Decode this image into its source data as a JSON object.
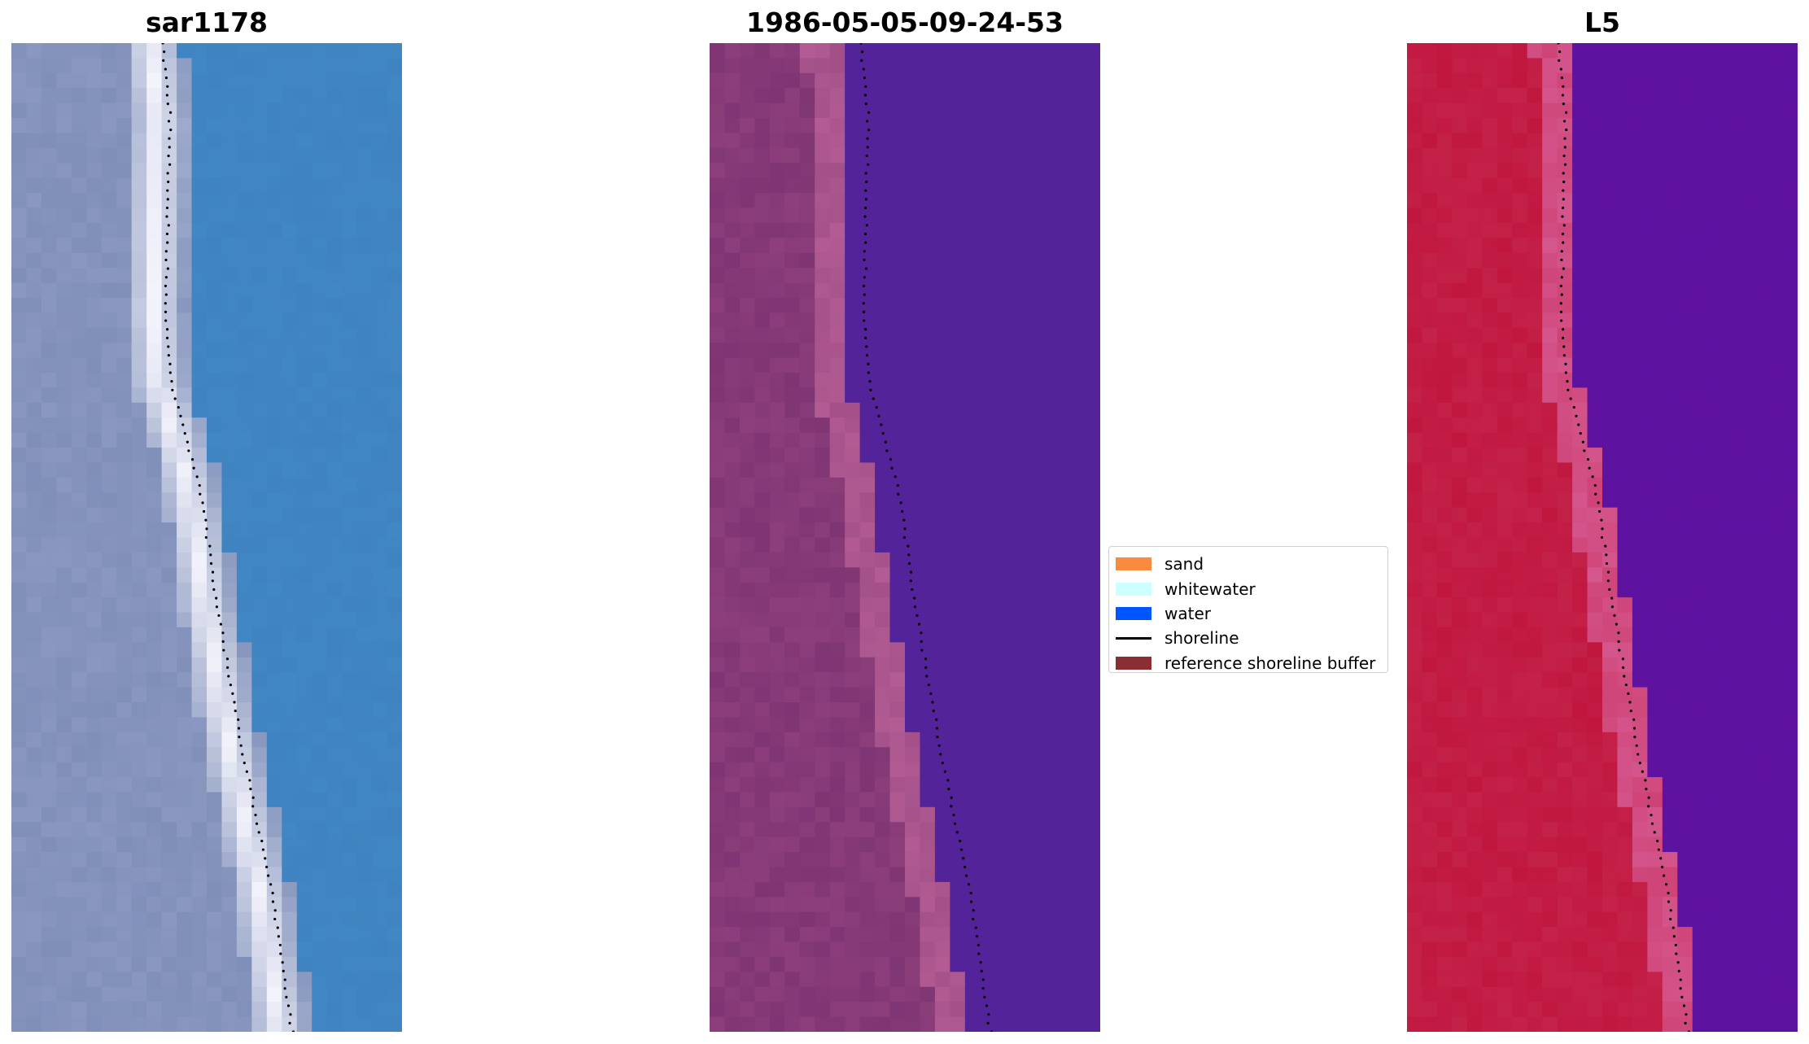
{
  "panels": [
    {
      "title": "sar1178"
    },
    {
      "title": "1986-05-05-09-24-53"
    },
    {
      "title": "L5"
    }
  ],
  "legend": {
    "items": [
      {
        "label": "sand",
        "color": "#f88b3e"
      },
      {
        "label": "whitewater",
        "color": "#ccffff"
      },
      {
        "label": "water",
        "color": "#0055ff"
      },
      {
        "label": "shoreline",
        "color": "#000000"
      },
      {
        "label": "reference shoreline buffer",
        "color": "#8b2e33"
      }
    ]
  },
  "colors": {
    "rgb_land": "#7f8fb8",
    "rgb_whitewater": "#f3f3fb",
    "rgb_water": "#3f84c0",
    "class_land": "#7f3573",
    "class_beach": "#b35c93",
    "class_water": "#53239a",
    "class_buffer": "#c23b4a",
    "ndwi_land": "#c1173f",
    "ndwi_beach": "#d4568d",
    "ndwi_water": "#5f12a0"
  }
}
